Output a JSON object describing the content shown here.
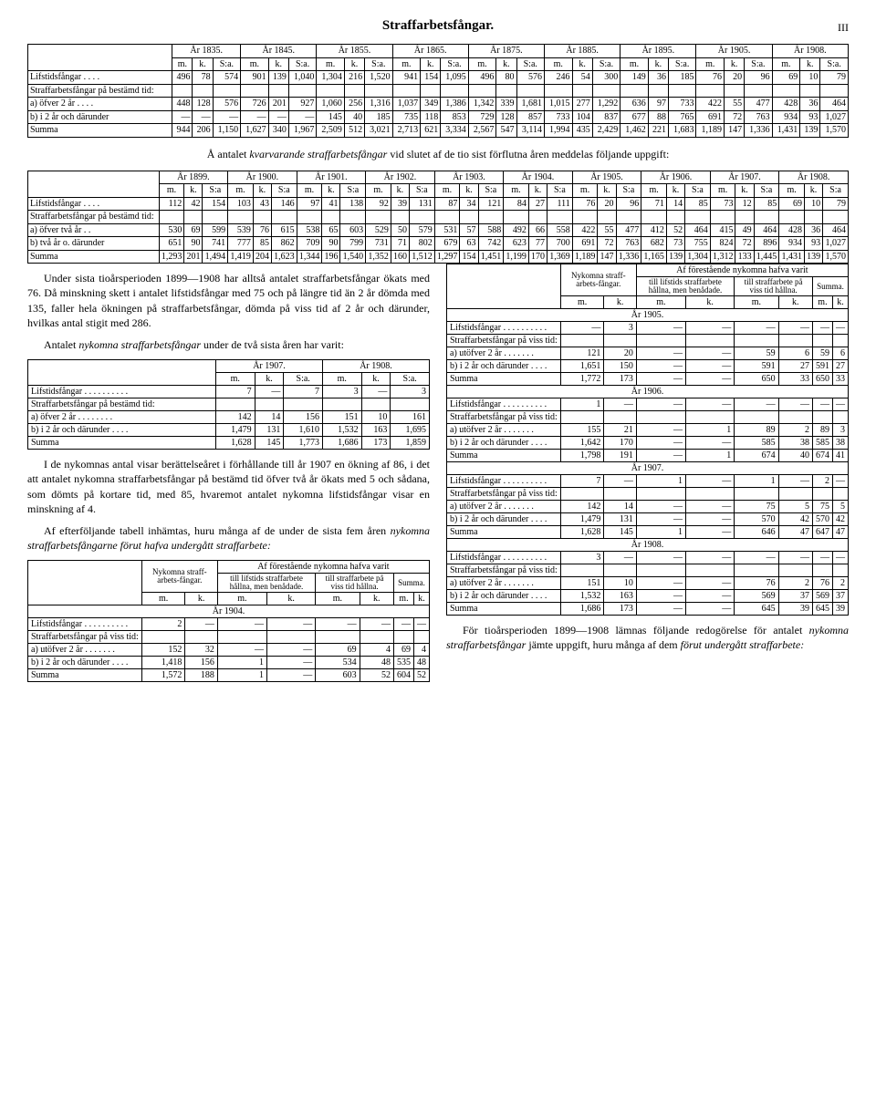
{
  "page": {
    "title": "Straffarbetsfångar.",
    "num": "III"
  },
  "table1": {
    "years": [
      "År 1835.",
      "År 1845.",
      "År 1855.",
      "År 1865.",
      "År 1875.",
      "År 1885.",
      "År 1895.",
      "År 1905.",
      "År 1908."
    ],
    "sub": [
      "m.",
      "k.",
      "S:a."
    ],
    "rows": [
      {
        "label": "Lifstidsfångar . . . .",
        "v": [
          "496",
          "78",
          "574",
          "901",
          "139",
          "1,040",
          "1,304",
          "216",
          "1,520",
          "941",
          "154",
          "1,095",
          "496",
          "80",
          "576",
          "246",
          "54",
          "300",
          "149",
          "36",
          "185",
          "76",
          "20",
          "96",
          "69",
          "10",
          "79"
        ]
      },
      {
        "label": "Straffarbetsfångar på bestämd tid:",
        "v": [
          "",
          "",
          "",
          "",
          "",
          "",
          "",
          "",
          "",
          "",
          "",
          "",
          "",
          "",
          "",
          "",
          "",
          "",
          "",
          "",
          "",
          "",
          "",
          "",
          "",
          "",
          ""
        ]
      },
      {
        "label": "a) öfver 2 år . . . .",
        "v": [
          "448",
          "128",
          "576",
          "726",
          "201",
          "927",
          "1,060",
          "256",
          "1,316",
          "1,037",
          "349",
          "1,386",
          "1,342",
          "339",
          "1,681",
          "1,015",
          "277",
          "1,292",
          "636",
          "97",
          "733",
          "422",
          "55",
          "477",
          "428",
          "36",
          "464"
        ]
      },
      {
        "label": "b) i 2 år och därunder",
        "v": [
          "—",
          "—",
          "—",
          "—",
          "—",
          "—",
          "145",
          "40",
          "185",
          "735",
          "118",
          "853",
          "729",
          "128",
          "857",
          "733",
          "104",
          "837",
          "677",
          "88",
          "765",
          "691",
          "72",
          "763",
          "934",
          "93",
          "1,027"
        ]
      },
      {
        "label": "Summa",
        "v": [
          "944",
          "206",
          "1,150",
          "1,627",
          "340",
          "1,967",
          "2,509",
          "512",
          "3,021",
          "2,713",
          "621",
          "3,334",
          "2,567",
          "547",
          "3,114",
          "1,994",
          "435",
          "2,429",
          "1,462",
          "221",
          "1,683",
          "1,189",
          "147",
          "1,336",
          "1,431",
          "139",
          "1,570"
        ]
      }
    ]
  },
  "intertext1": "Å antalet <i>kvarvarande straffarbetsfångar</i> vid slutet af de tio sist förflutna åren meddelas följande uppgift:",
  "table2": {
    "years": [
      "År 1899.",
      "År 1900.",
      "År 1901.",
      "År 1902.",
      "År 1903.",
      "År 1904.",
      "År 1905.",
      "År 1906.",
      "År 1907.",
      "År 1908."
    ],
    "sub": [
      "m.",
      "k.",
      "S:a"
    ],
    "rows": [
      {
        "label": "Lifstidsfångar . . . .",
        "v": [
          "112",
          "42",
          "154",
          "103",
          "43",
          "146",
          "97",
          "41",
          "138",
          "92",
          "39",
          "131",
          "87",
          "34",
          "121",
          "84",
          "27",
          "111",
          "76",
          "20",
          "96",
          "71",
          "14",
          "85",
          "73",
          "12",
          "85",
          "69",
          "10",
          "79"
        ]
      },
      {
        "label": "Straffarbetsfångar på bestämd tid:",
        "v": [
          "",
          "",
          "",
          "",
          "",
          "",
          "",
          "",
          "",
          "",
          "",
          "",
          "",
          "",
          "",
          "",
          "",
          "",
          "",
          "",
          "",
          "",
          "",
          "",
          "",
          "",
          "",
          "",
          "",
          ""
        ]
      },
      {
        "label": "a) öfver två år . .",
        "v": [
          "530",
          "69",
          "599",
          "539",
          "76",
          "615",
          "538",
          "65",
          "603",
          "529",
          "50",
          "579",
          "531",
          "57",
          "588",
          "492",
          "66",
          "558",
          "422",
          "55",
          "477",
          "412",
          "52",
          "464",
          "415",
          "49",
          "464",
          "428",
          "36",
          "464"
        ]
      },
      {
        "label": "b) två år o. därunder",
        "v": [
          "651",
          "90",
          "741",
          "777",
          "85",
          "862",
          "709",
          "90",
          "799",
          "731",
          "71",
          "802",
          "679",
          "63",
          "742",
          "623",
          "77",
          "700",
          "691",
          "72",
          "763",
          "682",
          "73",
          "755",
          "824",
          "72",
          "896",
          "934",
          "93",
          "1,027"
        ]
      },
      {
        "label": "Summa",
        "v": [
          "1,293",
          "201",
          "1,494",
          "1,419",
          "204",
          "1,623",
          "1,344",
          "196",
          "1,540",
          "1,352",
          "160",
          "1,512",
          "1,297",
          "154",
          "1,451",
          "1,199",
          "170",
          "1,369",
          "1,189",
          "147",
          "1,336",
          "1,165",
          "139",
          "1,304",
          "1,312",
          "133",
          "1,445",
          "1,431",
          "139",
          "1,570"
        ]
      }
    ]
  },
  "para1": "Under sista tioårsperioden 1899—1908 har alltså antalet straffarbetsfångar ökats med 76. Då minskning skett i antalet lifstidsfångar med 75 och på längre tid än 2 år dömda med 135, faller hela ökningen på straffarbetsfångar, dömda på viss tid af 2 år och därunder, hvilkas antal stigit med 286.",
  "para2": "Antalet <i>nykomna straffarbetsfångar</i> under de två sista åren har varit:",
  "table3": {
    "years": [
      "År 1907.",
      "År 1908."
    ],
    "sub": [
      "m.",
      "k.",
      "S:a."
    ],
    "rows": [
      {
        "label": "Lifstidsfångar . . . . . . . . . .",
        "v": [
          "7",
          "—",
          "7",
          "3",
          "—",
          "3"
        ]
      },
      {
        "label": "Straffarbetsfångar på bestämd tid:",
        "v": [
          "",
          "",
          "",
          "",
          "",
          ""
        ]
      },
      {
        "label": "a) öfver 2 år . . . . . . . .",
        "v": [
          "142",
          "14",
          "156",
          "151",
          "10",
          "161"
        ]
      },
      {
        "label": "b) i 2 år och därunder . . . .",
        "v": [
          "1,479",
          "131",
          "1,610",
          "1,532",
          "163",
          "1,695"
        ]
      },
      {
        "label": "Summa",
        "v": [
          "1,628",
          "145",
          "1,773",
          "1,686",
          "173",
          "1,859"
        ]
      }
    ]
  },
  "para3": "I de nykomnas antal visar berättelseåret i förhållande till år 1907 en ökning af 86, i det att antalet nykomna straffarbetsfångar på bestämd tid öfver två år ökats med 5 och sådana, som dömts på kortare tid, med 85, hvaremot antalet nykomna lifstidsfångar visar en minskning af 4.",
  "para4": "Af efterföljande tabell inhämtas, huru många af de under de sista fem åren <i>nykomna straffarbetsfångarne förut hafva undergått straffarbete:</i>",
  "table4": {
    "head1": "Nykomna straff-arbets-fångar.",
    "head2": "Af förestående nykomna hafva varit",
    "head2a": "till lifstids straffarbete hållna, men benådade.",
    "head2b": "till straffarbete på viss tid hållna.",
    "head2c": "Summa.",
    "sub": [
      "m.",
      "k."
    ],
    "sections": [
      {
        "title": "År 1904.",
        "rows": [
          {
            "label": "Lifstidsfångar . . . . . . . . . .",
            "v": [
              "2",
              "—",
              "—",
              "—",
              "—",
              "—",
              "—",
              "—"
            ]
          },
          {
            "label": "Straffarbetsfångar på viss tid:",
            "v": [
              "",
              "",
              "",
              "",
              "",
              "",
              "",
              ""
            ]
          },
          {
            "label": "a) utöfver 2 år . . . . . . .",
            "v": [
              "152",
              "32",
              "—",
              "—",
              "69",
              "4",
              "69",
              "4"
            ]
          },
          {
            "label": "b) i 2 år och därunder . . . .",
            "v": [
              "1,418",
              "156",
              "1",
              "—",
              "534",
              "48",
              "535",
              "48"
            ]
          },
          {
            "label": "Summa",
            "v": [
              "1,572",
              "188",
              "1",
              "—",
              "603",
              "52",
              "604",
              "52"
            ]
          }
        ]
      },
      {
        "title": "År 1905.",
        "rows": [
          {
            "label": "Lifstidsfångar . . . . . . . . . .",
            "v": [
              "—",
              "3",
              "—",
              "—",
              "—",
              "—",
              "—",
              "—"
            ]
          },
          {
            "label": "Straffarbetsfångar på viss tid:",
            "v": [
              "",
              "",
              "",
              "",
              "",
              "",
              "",
              ""
            ]
          },
          {
            "label": "a) utöfver 2 år . . . . . . .",
            "v": [
              "121",
              "20",
              "—",
              "—",
              "59",
              "6",
              "59",
              "6"
            ]
          },
          {
            "label": "b) i 2 år och därunder . . . .",
            "v": [
              "1,651",
              "150",
              "—",
              "—",
              "591",
              "27",
              "591",
              "27"
            ]
          },
          {
            "label": "Summa",
            "v": [
              "1,772",
              "173",
              "—",
              "—",
              "650",
              "33",
              "650",
              "33"
            ]
          }
        ]
      },
      {
        "title": "År 1906.",
        "rows": [
          {
            "label": "Lifstidsfångar . . . . . . . . . .",
            "v": [
              "1",
              "—",
              "—",
              "—",
              "—",
              "—",
              "—",
              "—"
            ]
          },
          {
            "label": "Straffarbetsfångar på viss tid:",
            "v": [
              "",
              "",
              "",
              "",
              "",
              "",
              "",
              ""
            ]
          },
          {
            "label": "a) utöfver 2 år . . . . . . .",
            "v": [
              "155",
              "21",
              "—",
              "1",
              "89",
              "2",
              "89",
              "3"
            ]
          },
          {
            "label": "b) i 2 år och därunder . . . .",
            "v": [
              "1,642",
              "170",
              "—",
              "—",
              "585",
              "38",
              "585",
              "38"
            ]
          },
          {
            "label": "Summa",
            "v": [
              "1,798",
              "191",
              "—",
              "1",
              "674",
              "40",
              "674",
              "41"
            ]
          }
        ]
      },
      {
        "title": "År 1907.",
        "rows": [
          {
            "label": "Lifstidsfångar . . . . . . . . . .",
            "v": [
              "7",
              "—",
              "1",
              "—",
              "1",
              "—",
              "2",
              "—"
            ]
          },
          {
            "label": "Straffarbetsfångar på viss tid:",
            "v": [
              "",
              "",
              "",
              "",
              "",
              "",
              "",
              ""
            ]
          },
          {
            "label": "a) utöfver 2 år . . . . . . .",
            "v": [
              "142",
              "14",
              "—",
              "—",
              "75",
              "5",
              "75",
              "5"
            ]
          },
          {
            "label": "b) i 2 år och därunder . . . .",
            "v": [
              "1,479",
              "131",
              "—",
              "—",
              "570",
              "42",
              "570",
              "42"
            ]
          },
          {
            "label": "Summa",
            "v": [
              "1,628",
              "145",
              "1",
              "—",
              "646",
              "47",
              "647",
              "47"
            ]
          }
        ]
      },
      {
        "title": "År 1908.",
        "rows": [
          {
            "label": "Lifstidsfångar . . . . . . . . . .",
            "v": [
              "3",
              "—",
              "—",
              "—",
              "—",
              "—",
              "—",
              "—"
            ]
          },
          {
            "label": "Straffarbetsfångar på viss tid:",
            "v": [
              "",
              "",
              "",
              "",
              "",
              "",
              "",
              ""
            ]
          },
          {
            "label": "a) utöfver 2 år . . . . . . .",
            "v": [
              "151",
              "10",
              "—",
              "—",
              "76",
              "2",
              "76",
              "2"
            ]
          },
          {
            "label": "b) i 2 år och därunder . . . .",
            "v": [
              "1,532",
              "163",
              "—",
              "—",
              "569",
              "37",
              "569",
              "37"
            ]
          },
          {
            "label": "Summa",
            "v": [
              "1,686",
              "173",
              "—",
              "—",
              "645",
              "39",
              "645",
              "39"
            ]
          }
        ]
      }
    ]
  },
  "para5": "För tioårsperioden 1899—1908 lämnas följande redogörelse för antalet <i>nykomna straffarbetsfångar</i> jämte uppgift, huru många af dem <i>förut undergått straffarbete:</i>"
}
